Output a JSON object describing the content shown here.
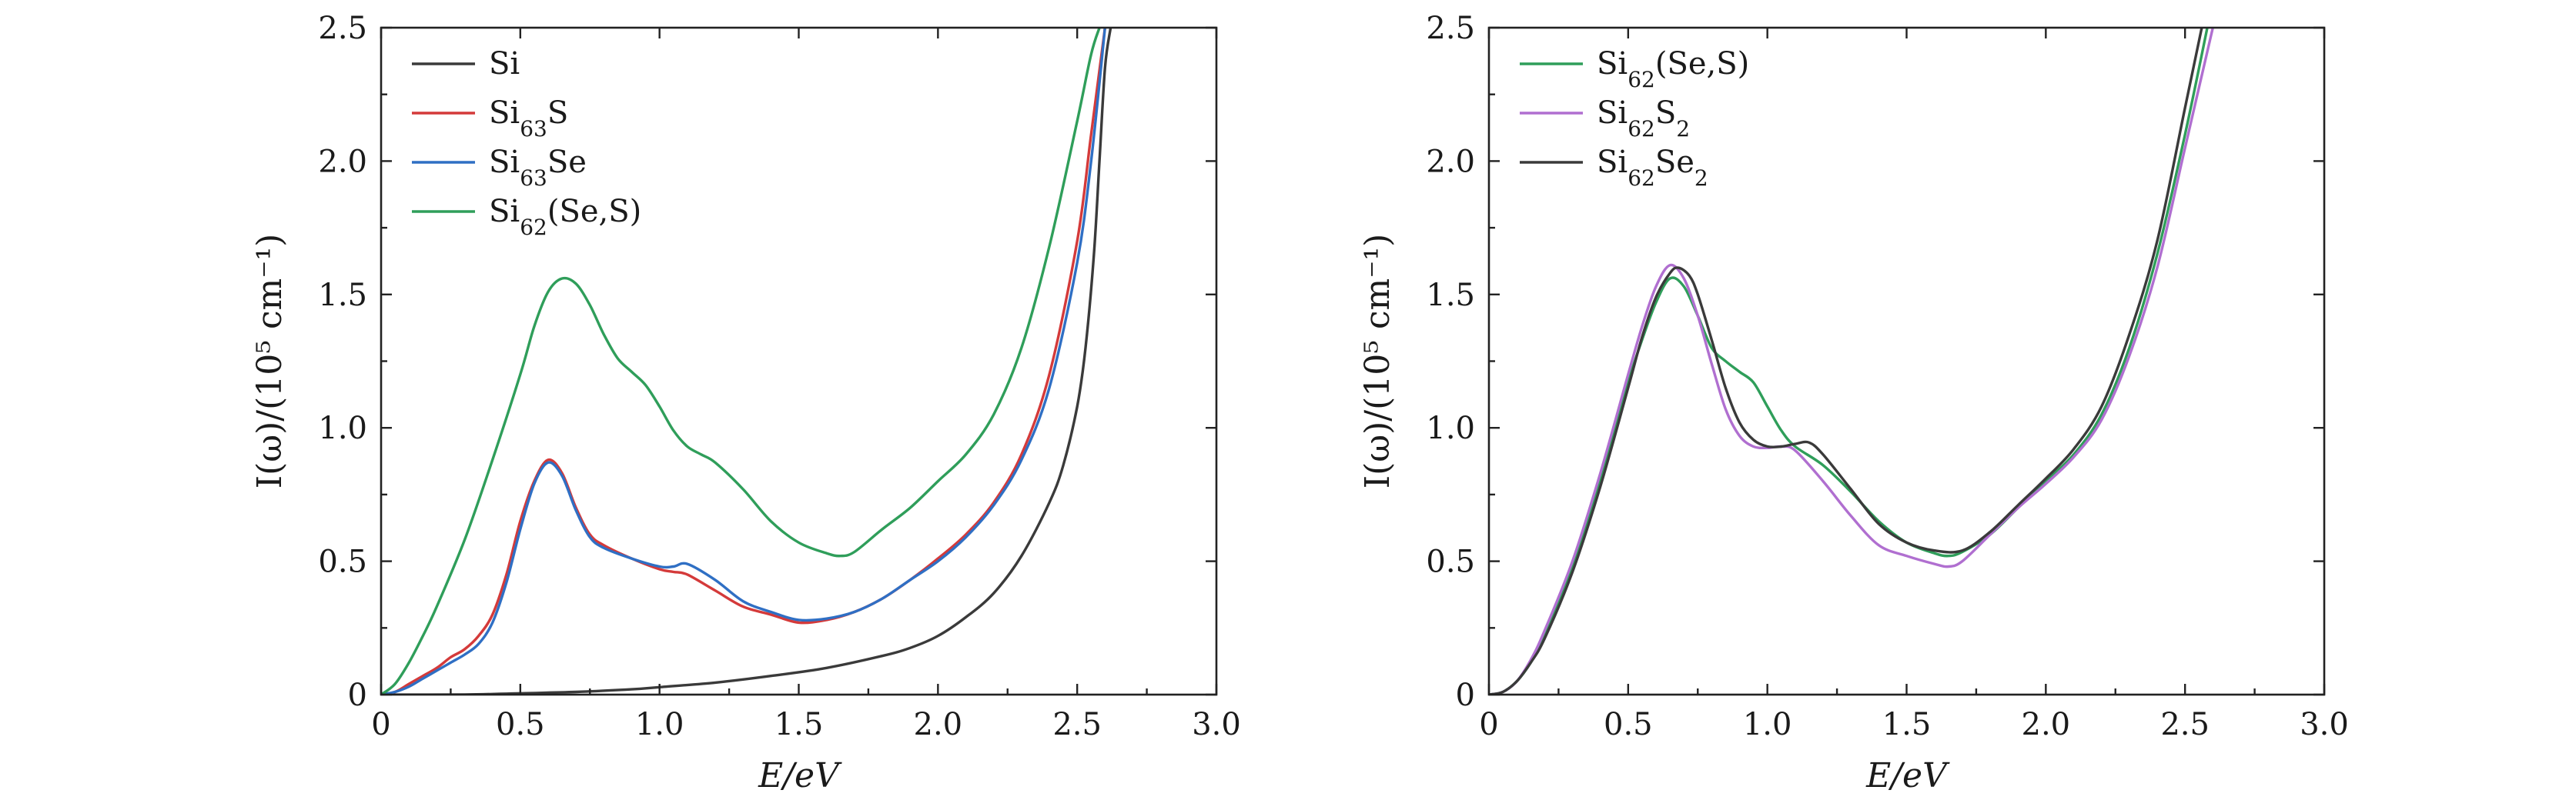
{
  "chart_data": [
    {
      "type": "line",
      "title": "",
      "xlabel": "E/eV",
      "ylabel": "I(ω)/(10⁵ cm⁻¹)",
      "xlim": [
        0,
        3.0
      ],
      "ylim": [
        0,
        2.5
      ],
      "xticks": [
        "0",
        "0.5",
        "1.0",
        "1.5",
        "2.0",
        "2.5",
        "3.0"
      ],
      "yticks": [
        "0",
        "0.5",
        "1.0",
        "1.5",
        "2.0",
        "2.5"
      ],
      "legend_position": "top-left",
      "series": [
        {
          "name": "Si",
          "color": "#3a3a3a",
          "points": [
            [
              0,
              0
            ],
            [
              0.3,
              0
            ],
            [
              0.5,
              0.005
            ],
            [
              0.7,
              0.01
            ],
            [
              0.9,
              0.02
            ],
            [
              1.0,
              0.028
            ],
            [
              1.2,
              0.045
            ],
            [
              1.4,
              0.07
            ],
            [
              1.6,
              0.1
            ],
            [
              1.8,
              0.145
            ],
            [
              1.9,
              0.175
            ],
            [
              2.0,
              0.22
            ],
            [
              2.1,
              0.29
            ],
            [
              2.2,
              0.38
            ],
            [
              2.3,
              0.52
            ],
            [
              2.4,
              0.72
            ],
            [
              2.45,
              0.86
            ],
            [
              2.5,
              1.08
            ],
            [
              2.53,
              1.3
            ],
            [
              2.56,
              1.65
            ],
            [
              2.58,
              2.0
            ],
            [
              2.6,
              2.35
            ],
            [
              2.62,
              2.5
            ]
          ]
        },
        {
          "name": "Si$_{63}$S",
          "color": "#d43a3a",
          "points": [
            [
              0,
              0
            ],
            [
              0.05,
              0.01
            ],
            [
              0.1,
              0.04
            ],
            [
              0.15,
              0.07
            ],
            [
              0.2,
              0.1
            ],
            [
              0.25,
              0.14
            ],
            [
              0.3,
              0.17
            ],
            [
              0.35,
              0.22
            ],
            [
              0.4,
              0.3
            ],
            [
              0.45,
              0.45
            ],
            [
              0.5,
              0.65
            ],
            [
              0.55,
              0.8
            ],
            [
              0.6,
              0.88
            ],
            [
              0.65,
              0.83
            ],
            [
              0.7,
              0.7
            ],
            [
              0.75,
              0.6
            ],
            [
              0.8,
              0.56
            ],
            [
              0.9,
              0.51
            ],
            [
              1.0,
              0.47
            ],
            [
              1.05,
              0.46
            ],
            [
              1.1,
              0.45
            ],
            [
              1.2,
              0.39
            ],
            [
              1.3,
              0.33
            ],
            [
              1.4,
              0.3
            ],
            [
              1.5,
              0.27
            ],
            [
              1.6,
              0.28
            ],
            [
              1.7,
              0.31
            ],
            [
              1.8,
              0.36
            ],
            [
              1.9,
              0.43
            ],
            [
              2.0,
              0.51
            ],
            [
              2.1,
              0.6
            ],
            [
              2.2,
              0.72
            ],
            [
              2.3,
              0.9
            ],
            [
              2.4,
              1.2
            ],
            [
              2.5,
              1.7
            ],
            [
              2.55,
              2.1
            ],
            [
              2.6,
              2.5
            ]
          ]
        },
        {
          "name": "Si$_{63}$Se",
          "color": "#2f6fc4",
          "points": [
            [
              0,
              0
            ],
            [
              0.05,
              0.01
            ],
            [
              0.1,
              0.03
            ],
            [
              0.15,
              0.06
            ],
            [
              0.2,
              0.09
            ],
            [
              0.25,
              0.12
            ],
            [
              0.3,
              0.15
            ],
            [
              0.35,
              0.19
            ],
            [
              0.4,
              0.27
            ],
            [
              0.45,
              0.42
            ],
            [
              0.5,
              0.62
            ],
            [
              0.55,
              0.79
            ],
            [
              0.6,
              0.87
            ],
            [
              0.65,
              0.82
            ],
            [
              0.7,
              0.69
            ],
            [
              0.75,
              0.59
            ],
            [
              0.8,
              0.55
            ],
            [
              0.9,
              0.51
            ],
            [
              1.0,
              0.48
            ],
            [
              1.05,
              0.48
            ],
            [
              1.1,
              0.49
            ],
            [
              1.2,
              0.43
            ],
            [
              1.3,
              0.35
            ],
            [
              1.4,
              0.31
            ],
            [
              1.5,
              0.28
            ],
            [
              1.6,
              0.285
            ],
            [
              1.7,
              0.31
            ],
            [
              1.8,
              0.36
            ],
            [
              1.9,
              0.43
            ],
            [
              2.0,
              0.5
            ],
            [
              2.1,
              0.59
            ],
            [
              2.2,
              0.71
            ],
            [
              2.3,
              0.88
            ],
            [
              2.4,
              1.15
            ],
            [
              2.5,
              1.62
            ],
            [
              2.55,
              2.0
            ],
            [
              2.6,
              2.5
            ]
          ]
        },
        {
          "name": "Si$_{62}$(Se,S)",
          "color": "#2f9e5a",
          "points": [
            [
              0,
              0
            ],
            [
              0.05,
              0.04
            ],
            [
              0.1,
              0.12
            ],
            [
              0.15,
              0.22
            ],
            [
              0.2,
              0.33
            ],
            [
              0.3,
              0.58
            ],
            [
              0.4,
              0.88
            ],
            [
              0.5,
              1.2
            ],
            [
              0.55,
              1.38
            ],
            [
              0.6,
              1.51
            ],
            [
              0.65,
              1.56
            ],
            [
              0.7,
              1.54
            ],
            [
              0.75,
              1.46
            ],
            [
              0.8,
              1.35
            ],
            [
              0.85,
              1.26
            ],
            [
              0.9,
              1.21
            ],
            [
              0.95,
              1.16
            ],
            [
              1.0,
              1.08
            ],
            [
              1.05,
              0.99
            ],
            [
              1.1,
              0.93
            ],
            [
              1.15,
              0.9
            ],
            [
              1.2,
              0.87
            ],
            [
              1.3,
              0.77
            ],
            [
              1.4,
              0.65
            ],
            [
              1.5,
              0.57
            ],
            [
              1.6,
              0.53
            ],
            [
              1.65,
              0.52
            ],
            [
              1.7,
              0.535
            ],
            [
              1.8,
              0.62
            ],
            [
              1.9,
              0.7
            ],
            [
              2.0,
              0.8
            ],
            [
              2.1,
              0.9
            ],
            [
              2.2,
              1.05
            ],
            [
              2.3,
              1.3
            ],
            [
              2.4,
              1.68
            ],
            [
              2.5,
              2.15
            ],
            [
              2.55,
              2.4
            ],
            [
              2.58,
              2.5
            ]
          ]
        }
      ]
    },
    {
      "type": "line",
      "title": "",
      "xlabel": "E/eV",
      "ylabel": "I(ω)/(10⁵ cm⁻¹)",
      "xlim": [
        0,
        3.0
      ],
      "ylim": [
        0,
        2.5
      ],
      "xticks": [
        "0",
        "0.5",
        "1.0",
        "1.5",
        "2.0",
        "2.5",
        "3.0"
      ],
      "yticks": [
        "0",
        "0.5",
        "1.0",
        "1.5",
        "2.0",
        "2.5"
      ],
      "legend_position": "top-left",
      "series": [
        {
          "name": "Si$_{62}$(Se,S)",
          "color": "#2f9e5a",
          "points": [
            [
              0,
              0
            ],
            [
              0.05,
              0.01
            ],
            [
              0.1,
              0.05
            ],
            [
              0.15,
              0.12
            ],
            [
              0.2,
              0.22
            ],
            [
              0.3,
              0.48
            ],
            [
              0.4,
              0.8
            ],
            [
              0.5,
              1.17
            ],
            [
              0.55,
              1.33
            ],
            [
              0.6,
              1.47
            ],
            [
              0.65,
              1.56
            ],
            [
              0.7,
              1.53
            ],
            [
              0.75,
              1.42
            ],
            [
              0.8,
              1.3
            ],
            [
              0.85,
              1.25
            ],
            [
              0.9,
              1.21
            ],
            [
              0.95,
              1.17
            ],
            [
              1.0,
              1.08
            ],
            [
              1.05,
              0.99
            ],
            [
              1.1,
              0.93
            ],
            [
              1.2,
              0.86
            ],
            [
              1.3,
              0.76
            ],
            [
              1.4,
              0.65
            ],
            [
              1.5,
              0.57
            ],
            [
              1.6,
              0.53
            ],
            [
              1.65,
              0.52
            ],
            [
              1.7,
              0.535
            ],
            [
              1.8,
              0.6
            ],
            [
              1.9,
              0.7
            ],
            [
              2.0,
              0.8
            ],
            [
              2.1,
              0.9
            ],
            [
              2.2,
              1.05
            ],
            [
              2.3,
              1.3
            ],
            [
              2.4,
              1.65
            ],
            [
              2.5,
              2.1
            ],
            [
              2.58,
              2.5
            ]
          ]
        },
        {
          "name": "Si$_{62}$S$_2$",
          "color": "#b06fd0",
          "points": [
            [
              0,
              0
            ],
            [
              0.05,
              0.01
            ],
            [
              0.1,
              0.05
            ],
            [
              0.15,
              0.13
            ],
            [
              0.2,
              0.24
            ],
            [
              0.3,
              0.5
            ],
            [
              0.4,
              0.83
            ],
            [
              0.5,
              1.2
            ],
            [
              0.55,
              1.38
            ],
            [
              0.6,
              1.53
            ],
            [
              0.65,
              1.61
            ],
            [
              0.7,
              1.56
            ],
            [
              0.75,
              1.42
            ],
            [
              0.8,
              1.24
            ],
            [
              0.85,
              1.07
            ],
            [
              0.9,
              0.97
            ],
            [
              0.95,
              0.93
            ],
            [
              1.0,
              0.925
            ],
            [
              1.05,
              0.93
            ],
            [
              1.1,
              0.915
            ],
            [
              1.2,
              0.8
            ],
            [
              1.3,
              0.67
            ],
            [
              1.4,
              0.56
            ],
            [
              1.5,
              0.52
            ],
            [
              1.6,
              0.49
            ],
            [
              1.65,
              0.48
            ],
            [
              1.7,
              0.5
            ],
            [
              1.8,
              0.6
            ],
            [
              1.9,
              0.7
            ],
            [
              2.0,
              0.79
            ],
            [
              2.1,
              0.89
            ],
            [
              2.2,
              1.03
            ],
            [
              2.3,
              1.27
            ],
            [
              2.4,
              1.6
            ],
            [
              2.5,
              2.05
            ],
            [
              2.6,
              2.5
            ]
          ]
        },
        {
          "name": "Si$_{62}$Se$_2$",
          "color": "#3a3a3a",
          "points": [
            [
              0,
              0
            ],
            [
              0.05,
              0.01
            ],
            [
              0.1,
              0.05
            ],
            [
              0.15,
              0.12
            ],
            [
              0.2,
              0.21
            ],
            [
              0.3,
              0.46
            ],
            [
              0.4,
              0.78
            ],
            [
              0.5,
              1.15
            ],
            [
              0.55,
              1.34
            ],
            [
              0.6,
              1.49
            ],
            [
              0.65,
              1.58
            ],
            [
              0.68,
              1.6
            ],
            [
              0.72,
              1.57
            ],
            [
              0.75,
              1.5
            ],
            [
              0.8,
              1.33
            ],
            [
              0.85,
              1.15
            ],
            [
              0.9,
              1.02
            ],
            [
              0.95,
              0.955
            ],
            [
              1.0,
              0.93
            ],
            [
              1.05,
              0.93
            ],
            [
              1.1,
              0.94
            ],
            [
              1.15,
              0.945
            ],
            [
              1.2,
              0.9
            ],
            [
              1.3,
              0.77
            ],
            [
              1.4,
              0.64
            ],
            [
              1.5,
              0.57
            ],
            [
              1.6,
              0.54
            ],
            [
              1.7,
              0.54
            ],
            [
              1.8,
              0.61
            ],
            [
              1.9,
              0.71
            ],
            [
              2.0,
              0.81
            ],
            [
              2.1,
              0.92
            ],
            [
              2.2,
              1.08
            ],
            [
              2.3,
              1.35
            ],
            [
              2.4,
              1.7
            ],
            [
              2.5,
              2.2
            ],
            [
              2.56,
              2.5
            ]
          ]
        }
      ]
    }
  ]
}
